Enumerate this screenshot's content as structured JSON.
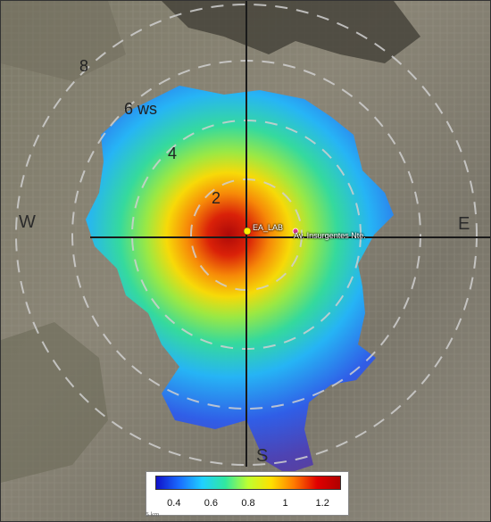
{
  "map": {
    "directions": {
      "west": "W",
      "east": "E",
      "south": "S"
    },
    "ring_labels": [
      "2",
      "4",
      "6 ws",
      "8"
    ],
    "sites": [
      {
        "name": "EA_LAB",
        "color": "#ffee00"
      },
      {
        "name": "Av. Insurgentes Nte.",
        "color": "#e23a8e"
      }
    ],
    "scale_label": "5 km"
  },
  "colorbar": {
    "ticks": [
      "0.4",
      "0.6",
      "0.8",
      "1",
      "1.2"
    ],
    "min": 0.3,
    "max": 1.3,
    "colors": [
      "#1010c8",
      "#1a6cff",
      "#1fd0ff",
      "#30e8a0",
      "#bfff30",
      "#ffe000",
      "#ff7a00",
      "#e00000",
      "#b00000"
    ]
  }
}
